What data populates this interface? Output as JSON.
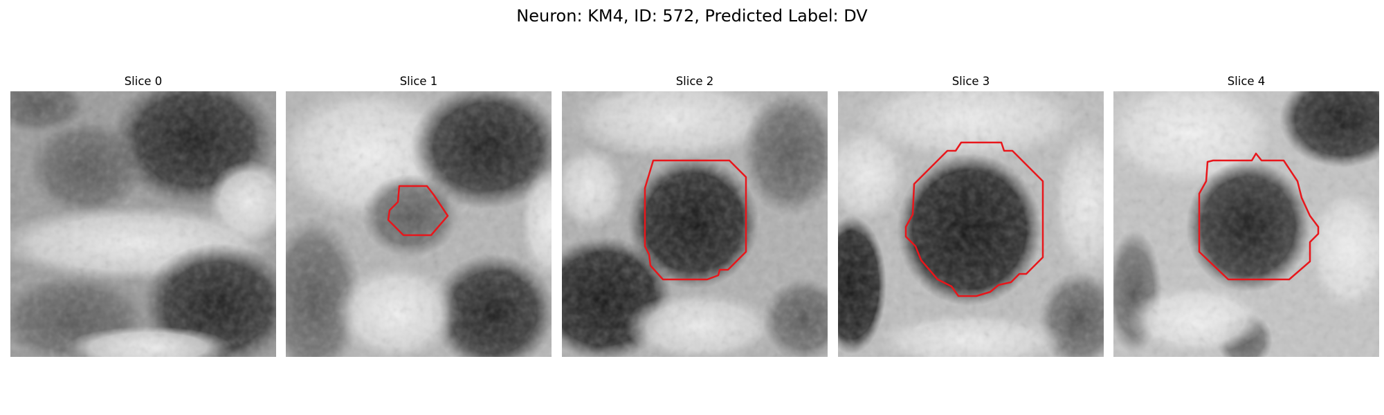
{
  "figure": {
    "title": "Neuron: KM4, ID: 572, Predicted Label: DV"
  },
  "panels": [
    {
      "title": "Slice 0",
      "contour": null
    },
    {
      "title": "Slice 1",
      "contour": "small"
    },
    {
      "title": "Slice 2",
      "contour": "large"
    },
    {
      "title": "Slice 3",
      "contour": "large"
    },
    {
      "title": "Slice 4",
      "contour": "medium"
    }
  ],
  "colors": {
    "contour": "#e8161b",
    "background": "#ffffff"
  }
}
